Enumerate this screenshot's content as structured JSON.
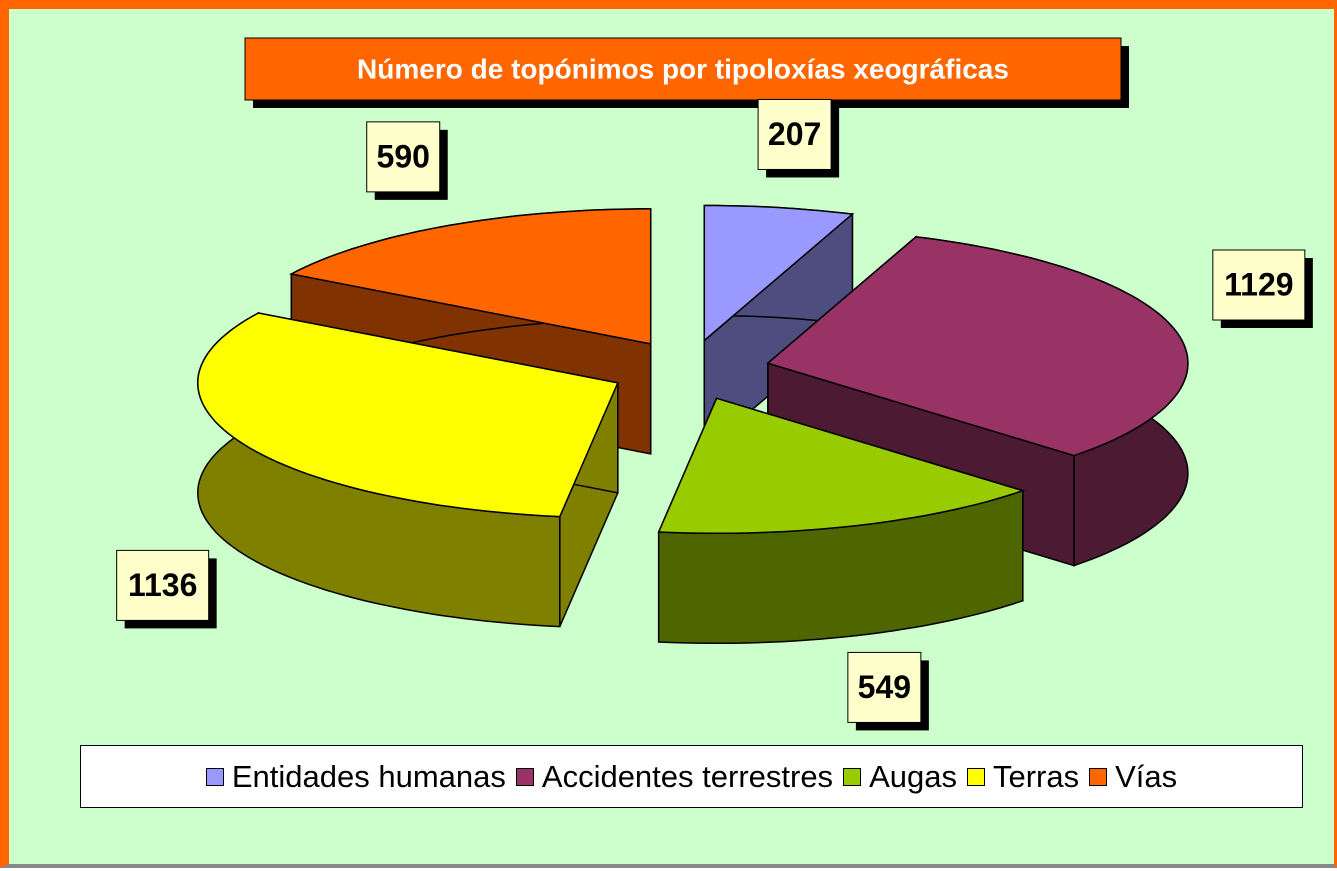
{
  "chart_data": {
    "type": "pie",
    "title": "Número de topónimos por tipoloxías xeográficas",
    "categories": [
      "Entidades humanas",
      "Accidentes terrestres",
      "Augas",
      "Terras",
      "Vías"
    ],
    "values": [
      207,
      1129,
      549,
      1136,
      590
    ],
    "colors": [
      "#9999ff",
      "#993366",
      "#99cc00",
      "#ffff00",
      "#ff6600"
    ],
    "legend": "bottom",
    "exploded": true,
    "three_d": true
  }
}
